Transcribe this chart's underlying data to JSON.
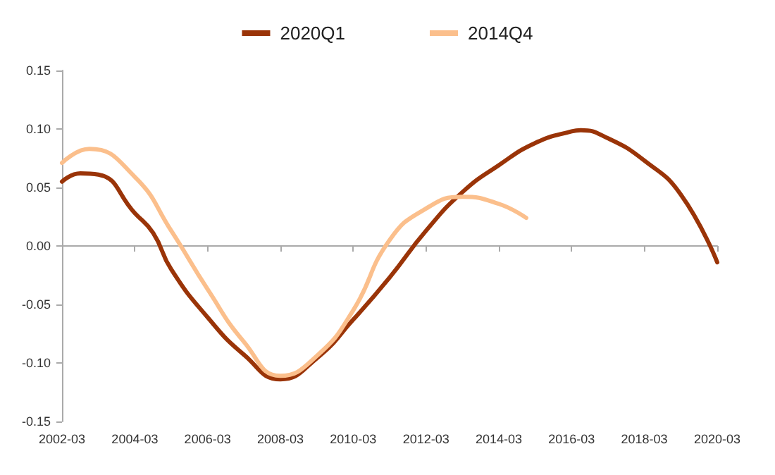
{
  "chart_data": {
    "type": "line",
    "legend": "top",
    "marker": "none",
    "line_style": "solid",
    "xlim": [
      "2002-03",
      "2020-03"
    ],
    "xticks": [
      "2002-03",
      "2004-03",
      "2006-03",
      "2008-03",
      "2010-03",
      "2012-03",
      "2014-03",
      "2016-03",
      "2018-03",
      "2020-03"
    ],
    "ylim": [
      -0.15,
      0.15
    ],
    "yticks": [
      {
        "value": -0.15,
        "label": "-0.15"
      },
      {
        "value": -0.1,
        "label": "-0.10"
      },
      {
        "value": -0.05,
        "label": "-0.05"
      },
      {
        "value": 0,
        "label": "0.00"
      },
      {
        "value": 0.05,
        "label": "0.05"
      },
      {
        "value": 0.1,
        "label": "0.10"
      },
      {
        "value": 0.15,
        "label": "0.15"
      }
    ],
    "series": [
      {
        "name": "2020Q1",
        "color": "#9a3408",
        "x": [
          "2002-03",
          "2002-09",
          "2003-03",
          "2004-03",
          "2004-09",
          "2005-03",
          "2006-03",
          "2007-03",
          "2008-03",
          "2009-03",
          "2010-03",
          "2011-03",
          "2012-03",
          "2013-03",
          "2014-03",
          "2015-03",
          "2016-03",
          "2016-06",
          "2017-03",
          "2018-03",
          "2019-03",
          "2020-03"
        ],
        "values": [
          0.055,
          0.062,
          0.061,
          0.028,
          0.011,
          -0.02,
          -0.061,
          -0.093,
          -0.114,
          -0.096,
          -0.063,
          -0.027,
          0.013,
          0.046,
          0.069,
          0.088,
          0.098,
          0.099,
          0.092,
          0.073,
          0.044,
          -0.014
        ]
      },
      {
        "name": "2014Q4",
        "color": "#fbbf8c",
        "x": [
          "2002-03",
          "2002-12",
          "2004-03",
          "2005-03",
          "2006-03",
          "2007-03",
          "2008-03",
          "2009-03",
          "2010-03",
          "2011-03",
          "2012-03",
          "2013-03",
          "2014-03",
          "2014-12"
        ],
        "values": [
          0.071,
          0.083,
          0.059,
          0.013,
          -0.037,
          -0.082,
          -0.111,
          -0.094,
          -0.055,
          0.005,
          0.032,
          0.042,
          0.036,
          0.024
        ]
      }
    ]
  }
}
